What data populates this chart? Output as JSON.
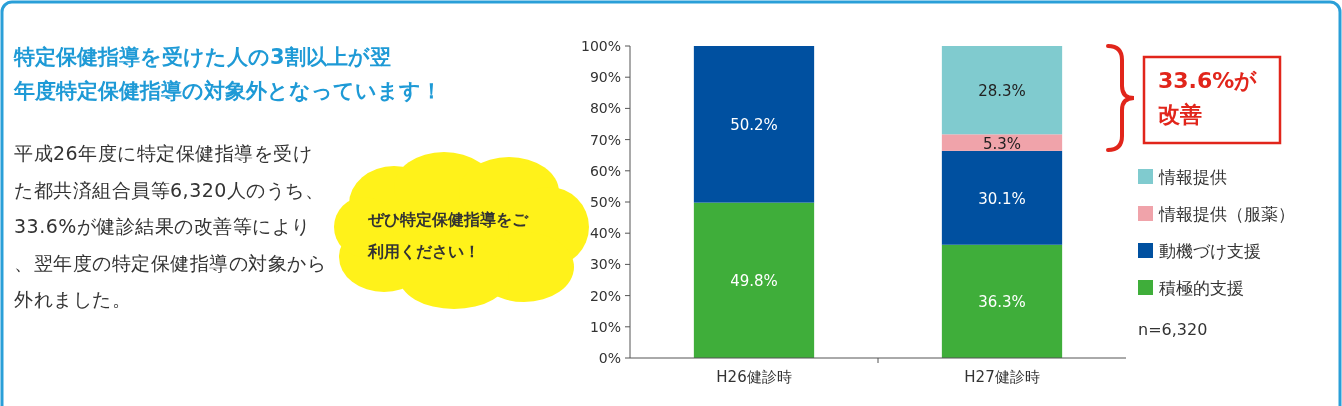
{
  "chart_data": {
    "type": "bar",
    "stacked": true,
    "title": "特定保健指導を受けた人の3割以上が翌年度特定保健指導の対象外となっています！",
    "categories": [
      "H26健診時",
      "H27健診時"
    ],
    "series": [
      {
        "name": "積極的支援",
        "color": "#3fae3a",
        "values": [
          49.8,
          36.3
        ],
        "value_labels": [
          "49.8%",
          "36.3%"
        ]
      },
      {
        "name": "動機づけ支援",
        "color": "#0050a0",
        "values": [
          50.2,
          30.1
        ],
        "value_labels": [
          "50.2%",
          "30.1%"
        ]
      },
      {
        "name": "情報提供（服薬）",
        "color": "#f0a3aa",
        "values": [
          null,
          5.3
        ],
        "value_labels": [
          null,
          "5.3%"
        ]
      },
      {
        "name": "情報提供",
        "color": "#80cbcf",
        "values": [
          null,
          28.3
        ],
        "value_labels": [
          null,
          "28.3%"
        ]
      }
    ],
    "ylim": [
      0,
      100
    ],
    "yticks": [
      {
        "value": 0,
        "label": "0%"
      },
      {
        "value": 10,
        "label": "10%"
      },
      {
        "value": 20,
        "label": "20%"
      },
      {
        "value": 30,
        "label": "30%"
      },
      {
        "value": 40,
        "label": "40%"
      },
      {
        "value": 50,
        "label": "50%"
      },
      {
        "value": 60,
        "label": "60%"
      },
      {
        "value": 70,
        "label": "70%"
      },
      {
        "value": 80,
        "label": "80%"
      },
      {
        "value": 90,
        "label": "90%"
      },
      {
        "value": 100,
        "label": "100%"
      }
    ],
    "legend": "right",
    "grid": false,
    "annotations": [
      "平成26年度に特定保健指導を受けた都共済組合員等6,320人のうち、33.6%が健診結果の改善等により、翌年度の特定保健指導の対象から外れました。",
      "ぜひ特定保健指導をご利用ください！",
      "33.6%が改善",
      "n=6,320"
    ]
  }
}
